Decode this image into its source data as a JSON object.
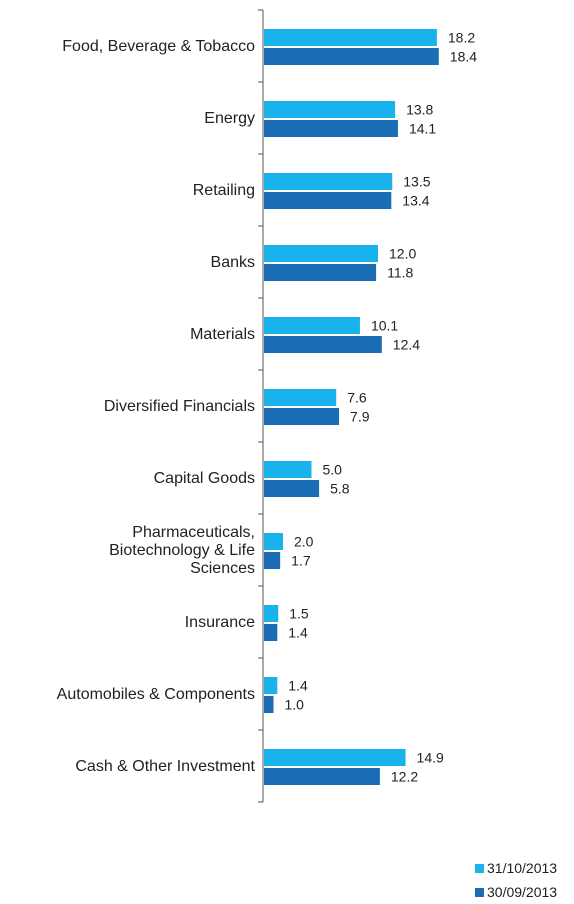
{
  "chart_data": {
    "type": "bar",
    "orientation": "horizontal",
    "categories": [
      [
        "Food, Beverage & Tobacco"
      ],
      [
        "Energy"
      ],
      [
        "Retailing"
      ],
      [
        "Banks"
      ],
      [
        "Materials"
      ],
      [
        "Diversified Financials"
      ],
      [
        "Capital Goods"
      ],
      [
        "Pharmaceuticals,",
        "Biotechnology & Life",
        "Sciences"
      ],
      [
        "Insurance"
      ],
      [
        "Automobiles & Components"
      ],
      [
        "Cash & Other Investment"
      ]
    ],
    "series": [
      {
        "name": "31/10/2013",
        "color": "#1ab2ec",
        "values": [
          18.2,
          13.8,
          13.5,
          12.0,
          10.1,
          7.6,
          5.0,
          2.0,
          1.5,
          1.4,
          14.9
        ]
      },
      {
        "name": "30/09/2013",
        "color": "#1a6db4",
        "values": [
          18.4,
          14.1,
          13.4,
          11.8,
          12.4,
          7.9,
          5.8,
          1.7,
          1.4,
          1.0,
          12.2
        ]
      }
    ],
    "value_format": "one decimal",
    "xlim": [
      0,
      20
    ],
    "grid": false,
    "legend_position": "bottom-right"
  }
}
